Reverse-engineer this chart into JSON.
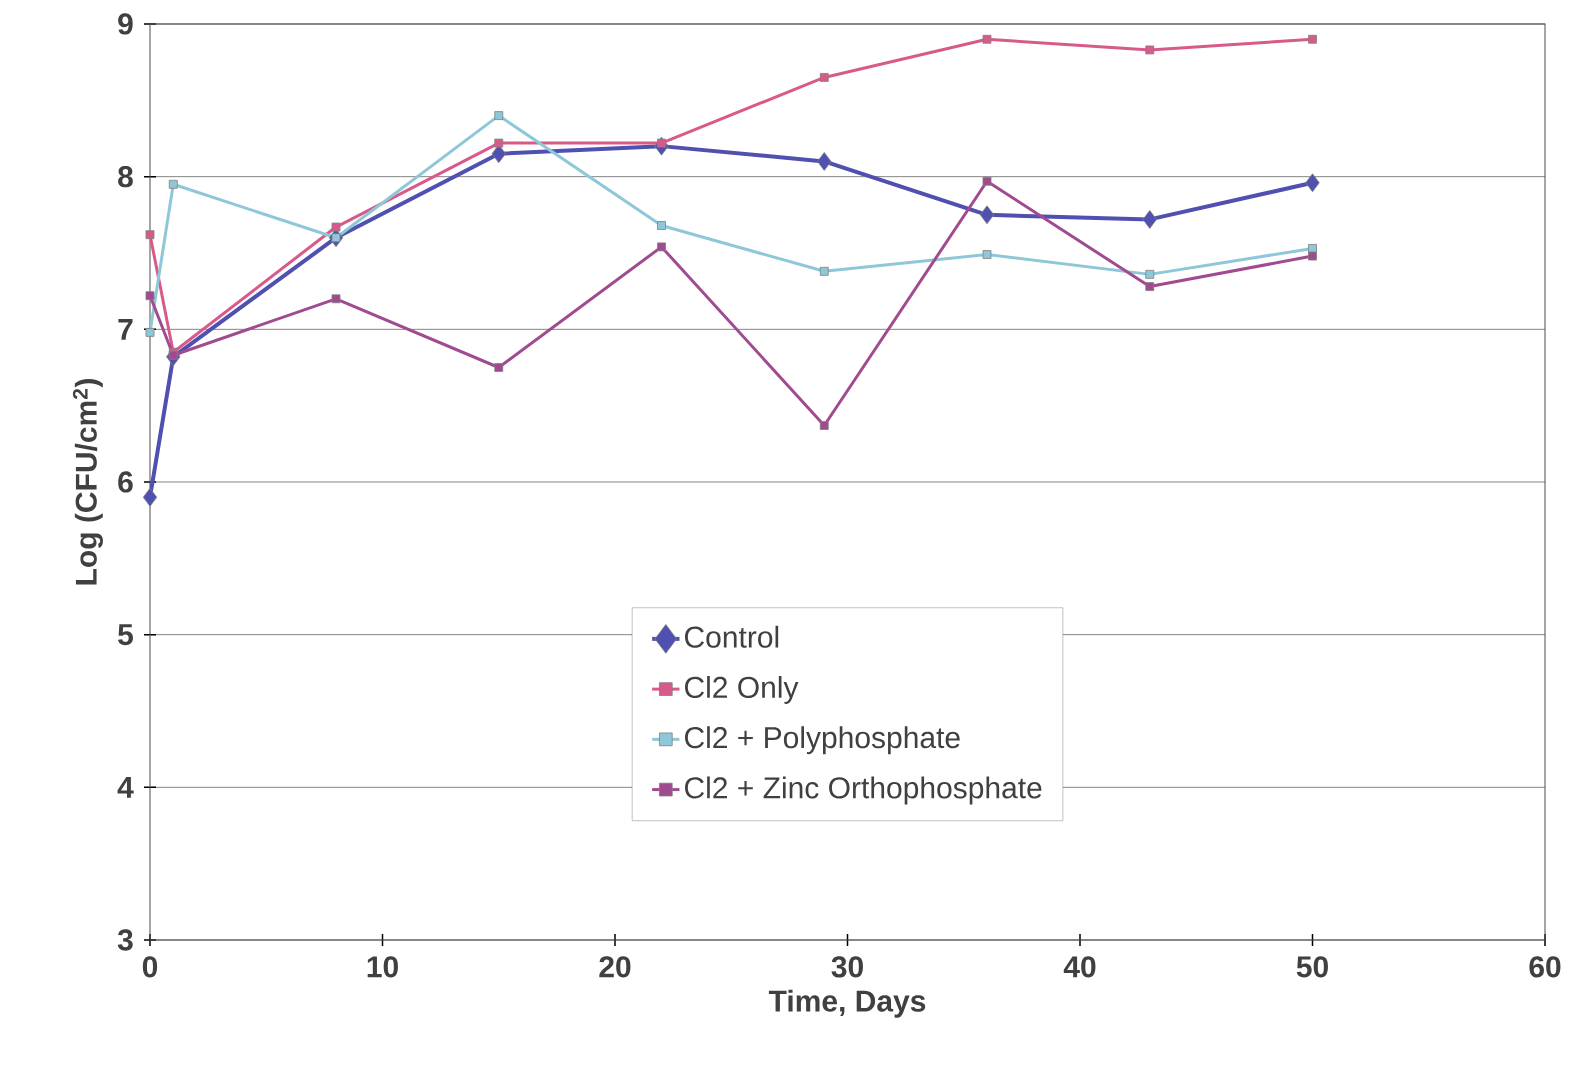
{
  "chart_data": {
    "type": "line",
    "xlabel": "Time, Days",
    "ylabel": "Log (CFU/cm$^{2}$)",
    "x": [
      0,
      1,
      8,
      15,
      22,
      29,
      36,
      43,
      50
    ],
    "series": [
      {
        "name": "Control",
        "color": "#5050b0",
        "marker": "diamond",
        "values": [
          5.9,
          6.82,
          7.6,
          8.15,
          8.2,
          8.1,
          7.75,
          7.72,
          7.96
        ]
      },
      {
        "name": "Cl2 Only",
        "color": "#d85a8a",
        "marker": "square",
        "values": [
          7.62,
          6.85,
          7.67,
          8.22,
          8.22,
          8.65,
          8.9,
          8.83,
          8.9
        ]
      },
      {
        "name": "Cl2 + Polyphosphate",
        "color": "#8ec8d8",
        "marker": "square",
        "values": [
          6.98,
          7.95,
          7.6,
          8.4,
          7.68,
          7.38,
          7.49,
          7.36,
          7.53
        ]
      },
      {
        "name": "Cl2 + Zinc Orthophosphate",
        "color": "#a04a90",
        "marker": "square",
        "values": [
          7.22,
          6.83,
          7.2,
          6.75,
          7.54,
          6.37,
          7.97,
          7.28,
          7.48
        ]
      }
    ],
    "xlim": [
      0,
      60
    ],
    "ylim": [
      3,
      9
    ],
    "xticks": [
      0,
      10,
      20,
      30,
      40,
      50,
      60
    ],
    "yticks": [
      3,
      4,
      5,
      6,
      7,
      8,
      9
    ],
    "grid": "y",
    "legend": "bottom",
    "line_style": "solid"
  }
}
